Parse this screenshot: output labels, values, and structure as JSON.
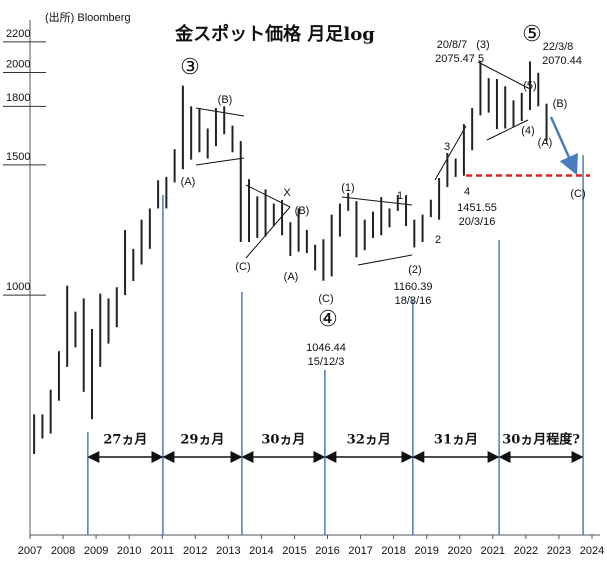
{
  "chart_data": {
    "type": "hilo",
    "title": "金スポット価格 月足log",
    "source": "(出所) Bloomberg",
    "log_scale": true,
    "color": "#222222",
    "xlim": [
      2007,
      2024
    ],
    "xticks": [
      2007,
      2008,
      2009,
      2010,
      2011,
      2012,
      2013,
      2014,
      2015,
      2016,
      2017,
      2018,
      2019,
      2020,
      2021,
      2022,
      2023,
      2024
    ],
    "ylim": [
      474,
      2355
    ],
    "yticks": [
      1000,
      1500,
      1800,
      2000,
      2200
    ],
    "x": [
      2007.125,
      2007.375,
      2007.625,
      2007.875,
      2008.125,
      2008.375,
      2008.625,
      2008.875,
      2009.125,
      2009.375,
      2009.625,
      2009.875,
      2010.125,
      2010.375,
      2010.625,
      2010.875,
      2011.125,
      2011.375,
      2011.625,
      2011.875,
      2012.125,
      2012.375,
      2012.625,
      2012.875,
      2013.125,
      2013.375,
      2013.625,
      2013.875,
      2014.125,
      2014.375,
      2014.625,
      2014.875,
      2015.125,
      2015.375,
      2015.625,
      2015.875,
      2016.125,
      2016.375,
      2016.625,
      2016.875,
      2017.125,
      2017.375,
      2017.625,
      2017.875,
      2018.125,
      2018.375,
      2018.625,
      2018.875,
      2019.125,
      2019.375,
      2019.625,
      2019.875,
      2020.125,
      2020.375,
      2020.625,
      2020.875,
      2021.125,
      2021.375,
      2021.625,
      2021.875,
      2022.125,
      2022.375,
      2022.625
    ],
    "high": [
      690,
      690,
      745,
      840,
      1030,
      950,
      990,
      900,
      1005,
      990,
      1025,
      1225,
      1155,
      1265,
      1310,
      1430,
      1445,
      1575,
      1920,
      1800,
      1790,
      1680,
      1790,
      1800,
      1695,
      1615,
      1435,
      1360,
      1390,
      1330,
      1345,
      1255,
      1310,
      1225,
      1170,
      1190,
      1285,
      1330,
      1375,
      1340,
      1265,
      1297,
      1357,
      1310,
      1366,
      1365,
      1265,
      1285,
      1346,
      1440,
      1557,
      1530,
      1703,
      1790,
      2075,
      1965,
      1960,
      1916,
      1834,
      1877,
      2070,
      1998,
      1815
    ],
    "low": [
      610,
      640,
      650,
      720,
      800,
      850,
      740,
      680,
      800,
      860,
      905,
      1000,
      1045,
      1100,
      1155,
      1310,
      1310,
      1420,
      1480,
      1525,
      1560,
      1530,
      1590,
      1650,
      1560,
      1180,
      1180,
      1195,
      1200,
      1240,
      1205,
      1130,
      1145,
      1140,
      1080,
      1046,
      1060,
      1200,
      1300,
      1125,
      1150,
      1195,
      1205,
      1235,
      1300,
      1240,
      1160,
      1180,
      1275,
      1265,
      1400,
      1445,
      1450,
      1570,
      1750,
      1765,
      1677,
      1680,
      1690,
      1720,
      1780,
      1800,
      1615
    ],
    "support": 1451.55,
    "cycle_marks": [
      2008.75,
      2011.02,
      2013.41,
      2015.92,
      2018.58,
      2021.19,
      2023.73
    ],
    "intervals": [
      "27ヵ月",
      "29ヵ月",
      "30ヵ月",
      "32ヵ月",
      "31ヵ月",
      "30ヵ月程度?"
    ],
    "annotations": [
      "③",
      "(B)",
      "(A)",
      "X",
      "(B)",
      "(C)",
      "(A)",
      "(1)",
      "1",
      "2",
      "(2)",
      "1160.39",
      "18/8/16",
      "(C)",
      "④",
      "1046.44",
      "15/12/3",
      "3",
      "4",
      "1451.55",
      "20/3/16",
      "20/8/7",
      "2075.47",
      "(3)",
      "5",
      "⑤",
      "22/3/8",
      "2070.44",
      "(5)",
      "(B)",
      "(4)",
      "(A)",
      "(C)"
    ]
  }
}
